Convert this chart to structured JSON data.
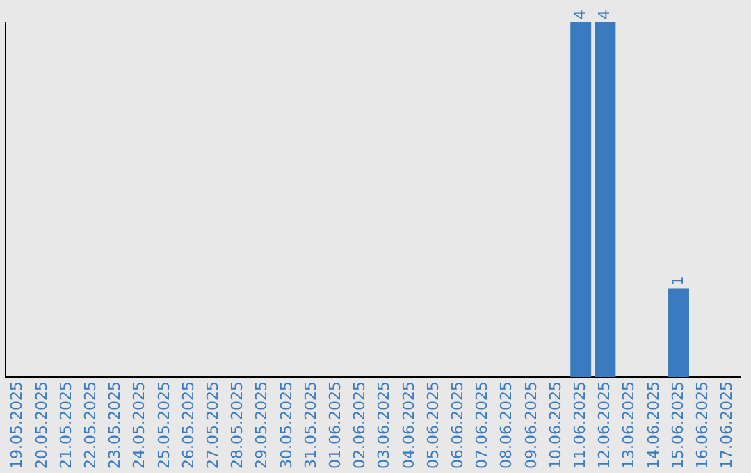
{
  "chart_data": {
    "type": "bar",
    "categories": [
      "19.05.2025",
      "20.05.2025",
      "21.05.2025",
      "22.05.2025",
      "23.05.2025",
      "24.05.2025",
      "25.05.2025",
      "26.05.2025",
      "27.05.2025",
      "28.05.2025",
      "29.05.2025",
      "30.05.2025",
      "31.05.2025",
      "01.06.2025",
      "02.06.2025",
      "03.06.2025",
      "04.06.2025",
      "05.06.2025",
      "06.06.2025",
      "07.06.2025",
      "08.06.2025",
      "09.06.2025",
      "10.06.2025",
      "11.06.2025",
      "12.06.2025",
      "13.06.2025",
      "14.06.2025",
      "15.06.2025",
      "16.06.2025",
      "17.06.2025"
    ],
    "values": [
      null,
      null,
      null,
      null,
      null,
      null,
      null,
      null,
      null,
      null,
      null,
      null,
      null,
      null,
      null,
      null,
      null,
      null,
      null,
      null,
      null,
      null,
      null,
      4,
      4,
      null,
      null,
      1,
      null,
      null
    ],
    "data_labels": true,
    "color": "#3a7bbf",
    "ylim": [
      0,
      4
    ],
    "tick_labels": "x",
    "grid": false,
    "legend": false
  }
}
